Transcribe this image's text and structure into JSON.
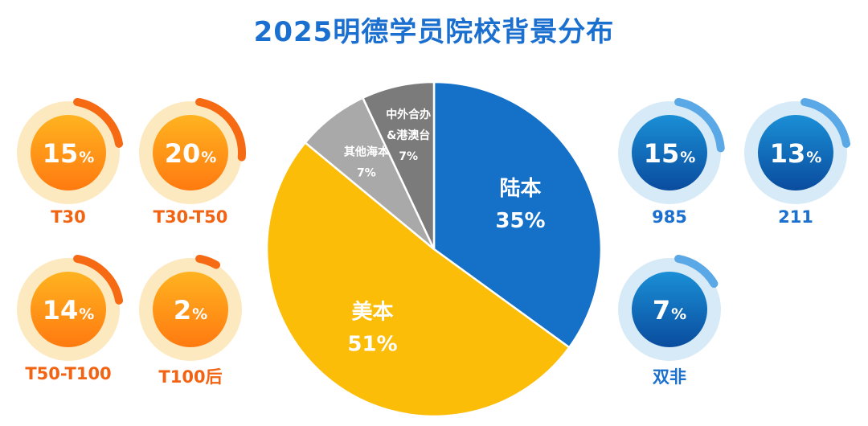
{
  "title": "2025明德学员院校背景分布",
  "pct_sign": "%",
  "colors": {
    "orange_halo": "#fde9bf",
    "orange_inner_top": "#ffb320",
    "orange_inner_bottom": "#ff7a10",
    "orange_arc": "#f56a12",
    "orange_label": "#f06414",
    "blue_halo": "#d7eaf7",
    "blue_inner_top": "#1a8fd6",
    "blue_inner_bottom": "#0a4c9e",
    "blue_arc": "#5aa8e6",
    "blue_label": "#1a6fcf"
  },
  "stats": [
    {
      "key": "t30",
      "value": 15,
      "label": "T30",
      "theme": "orange"
    },
    {
      "key": "t30-t50",
      "value": 20,
      "label": "T30-T50",
      "theme": "orange"
    },
    {
      "key": "t50-t100",
      "value": 14,
      "label": "T50-T100",
      "theme": "orange"
    },
    {
      "key": "t100-after",
      "value": 2,
      "label": "T100后",
      "theme": "orange"
    },
    {
      "key": "985",
      "value": 15,
      "label": "985",
      "theme": "blue"
    },
    {
      "key": "211",
      "value": 13,
      "label": "211",
      "theme": "blue"
    },
    {
      "key": "double-non",
      "value": 7,
      "label": "双非",
      "theme": "blue"
    }
  ],
  "chart_data": {
    "type": "pie",
    "title": "2025明德学员院校背景分布",
    "start": "12 o'clock",
    "direction": "clockwise",
    "slices": [
      {
        "name": "陆本",
        "value": 35,
        "label": "35%",
        "color": "#1570c8",
        "text_color": "#ffffff"
      },
      {
        "name": "美本",
        "value": 51,
        "label": "51%",
        "color": "#fbbd08",
        "text_color": "#ffffff"
      },
      {
        "name": "其他海本",
        "value": 7,
        "label": "7%",
        "color": "#a9a9a9",
        "text_color": "#ffffff"
      },
      {
        "name": "中外合办&港澳台",
        "value": 7,
        "label": "7%",
        "color": "#7b7b7b",
        "text_color": "#ffffff"
      }
    ]
  }
}
